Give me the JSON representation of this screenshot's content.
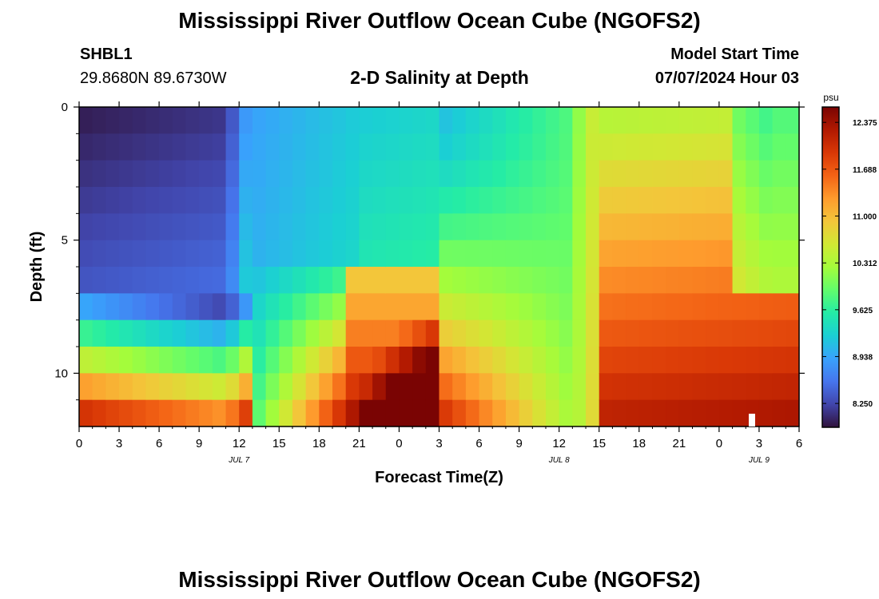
{
  "header": {
    "title": "Mississippi River Outflow Ocean Cube (NGOFS2)",
    "station_id": "SHBL1",
    "station_coords": "29.8680N  89.6730W",
    "plot_title": "2-D Salinity at Depth",
    "model_start_label": "Model Start Time",
    "model_start_value": "07/07/2024 Hour 03"
  },
  "footer": {
    "title": "Mississippi River Outflow Ocean Cube (NGOFS2)"
  },
  "chart_data": {
    "type": "heatmap",
    "title": "2-D Salinity at Depth",
    "xlabel": "Forecast Time(Z)",
    "ylabel": "Depth (ft)",
    "x_range_hours": [
      0,
      54
    ],
    "y_range_ft": [
      0,
      12
    ],
    "x_ticks": [
      "0",
      "3",
      "6",
      "9",
      "12",
      "15",
      "18",
      "21",
      "0",
      "3",
      "6",
      "9",
      "12",
      "15",
      "18",
      "21",
      "0",
      "3",
      "6"
    ],
    "y_ticks": [
      "0",
      "5",
      "10"
    ],
    "date_labels": [
      {
        "label": "JUL 7",
        "hour": 12
      },
      {
        "label": "JUL 8",
        "hour": 36
      },
      {
        "label": "JUL 9",
        "hour": 51
      }
    ],
    "colorbar": {
      "unit": "psu",
      "min": 7.9,
      "max": 12.6,
      "ticks": [
        "12.375",
        "11.688",
        "11.000",
        "10.312",
        "9.625",
        "8.938",
        "8.250"
      ],
      "tick_values": [
        12.375,
        11.688,
        11.0,
        10.312,
        9.625,
        8.938,
        8.25
      ],
      "colors": [
        "#30123b",
        "#4145ab",
        "#4675ed",
        "#39a2fc",
        "#1bcfd4",
        "#24eca6",
        "#61fc6c",
        "#a4fc3b",
        "#d1e834",
        "#f3c63a",
        "#fe9b2d",
        "#f36315",
        "#d93806",
        "#b11901",
        "#7a0403"
      ]
    },
    "depth_levels_ft": [
      0,
      1,
      2,
      3,
      4,
      5,
      6,
      7,
      8,
      9,
      10,
      11
    ],
    "salinity_profile_hour_0": [
      7.95,
      8.05,
      8.15,
      8.2,
      8.25,
      8.35,
      8.45,
      8.6,
      9.5,
      10.0,
      10.6,
      11.2
    ],
    "salinity_profile_hour_24": [
      9.0,
      9.2,
      9.3,
      9.4,
      9.6,
      9.6,
      10.3,
      11.3,
      11.7,
      12.0,
      12.1,
      12.3
    ],
    "salinity_profile_hour_48": [
      10.3,
      10.5,
      10.8,
      10.9,
      11.0,
      11.1,
      11.3,
      11.9,
      12.2,
      12.3,
      12.4,
      12.5
    ]
  }
}
